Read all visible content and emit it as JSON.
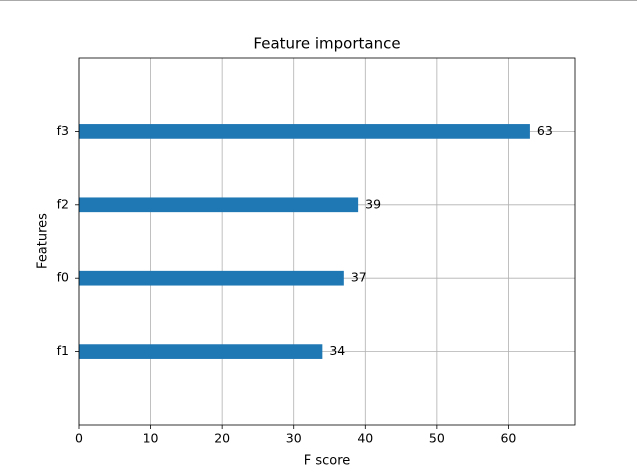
{
  "chart_data": {
    "type": "barh",
    "title": "Feature importance",
    "xlabel": "F score",
    "ylabel": "Features",
    "categories": [
      "f3",
      "f2",
      "f0",
      "f1"
    ],
    "values": [
      63,
      39,
      37,
      34
    ],
    "color": "#1f77b4",
    "xlim": [
      0,
      69.3
    ],
    "xticks": [
      0,
      10,
      20,
      30,
      40,
      50,
      60
    ],
    "grid": true
  }
}
